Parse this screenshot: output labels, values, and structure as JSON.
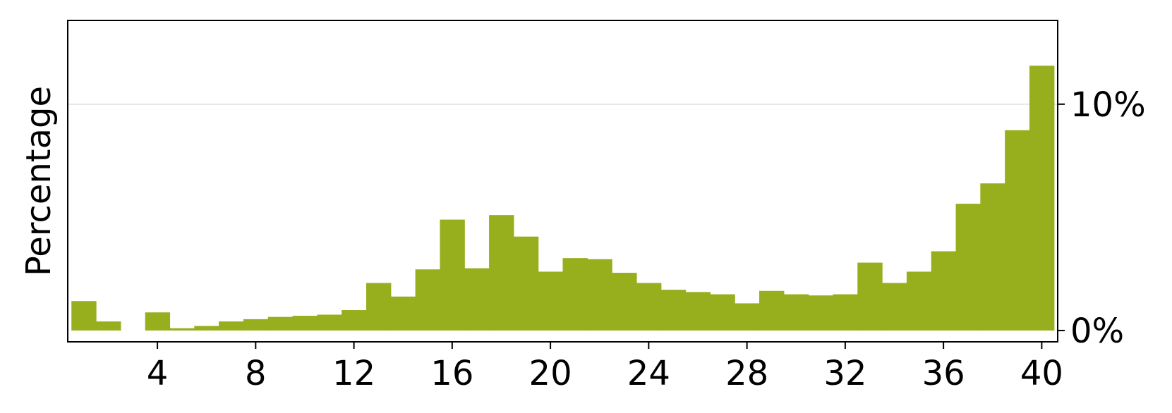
{
  "chart_data": {
    "type": "bar",
    "title": "",
    "xlabel": "",
    "ylabel": "Percentage",
    "x": [
      1,
      2,
      3,
      4,
      5,
      6,
      7,
      8,
      9,
      10,
      11,
      12,
      13,
      14,
      15,
      16,
      17,
      18,
      19,
      20,
      21,
      22,
      23,
      24,
      25,
      26,
      27,
      28,
      29,
      30,
      31,
      32,
      33,
      34,
      35,
      36,
      37,
      38,
      39,
      40
    ],
    "values": [
      1.3,
      0.4,
      0.0,
      0.8,
      0.1,
      0.2,
      0.4,
      0.5,
      0.6,
      0.65,
      0.7,
      0.9,
      2.1,
      1.5,
      2.7,
      4.9,
      2.75,
      5.1,
      4.15,
      2.6,
      3.2,
      3.15,
      2.55,
      2.1,
      1.8,
      1.7,
      1.6,
      1.2,
      1.75,
      1.6,
      1.55,
      1.6,
      3.0,
      2.1,
      2.6,
      3.5,
      5.6,
      6.5,
      8.85,
      11.7
    ],
    "xlim": [
      0.35,
      40.65
    ],
    "ylim": [
      -0.5,
      13.7
    ],
    "x_ticks": [
      4,
      8,
      12,
      16,
      20,
      24,
      28,
      32,
      36,
      40
    ],
    "x_tick_labels": [
      "4",
      "8",
      "12",
      "16",
      "20",
      "24",
      "28",
      "32",
      "36",
      "40"
    ],
    "y_ticks": [
      0,
      10
    ],
    "y_tick_labels": [
      "0%",
      "10%"
    ],
    "y_axis_side": "right",
    "grid": "horizontal at 10%",
    "legend": "none",
    "bar_color": "#97ae1d",
    "grid_color": "#e6e6e6"
  }
}
